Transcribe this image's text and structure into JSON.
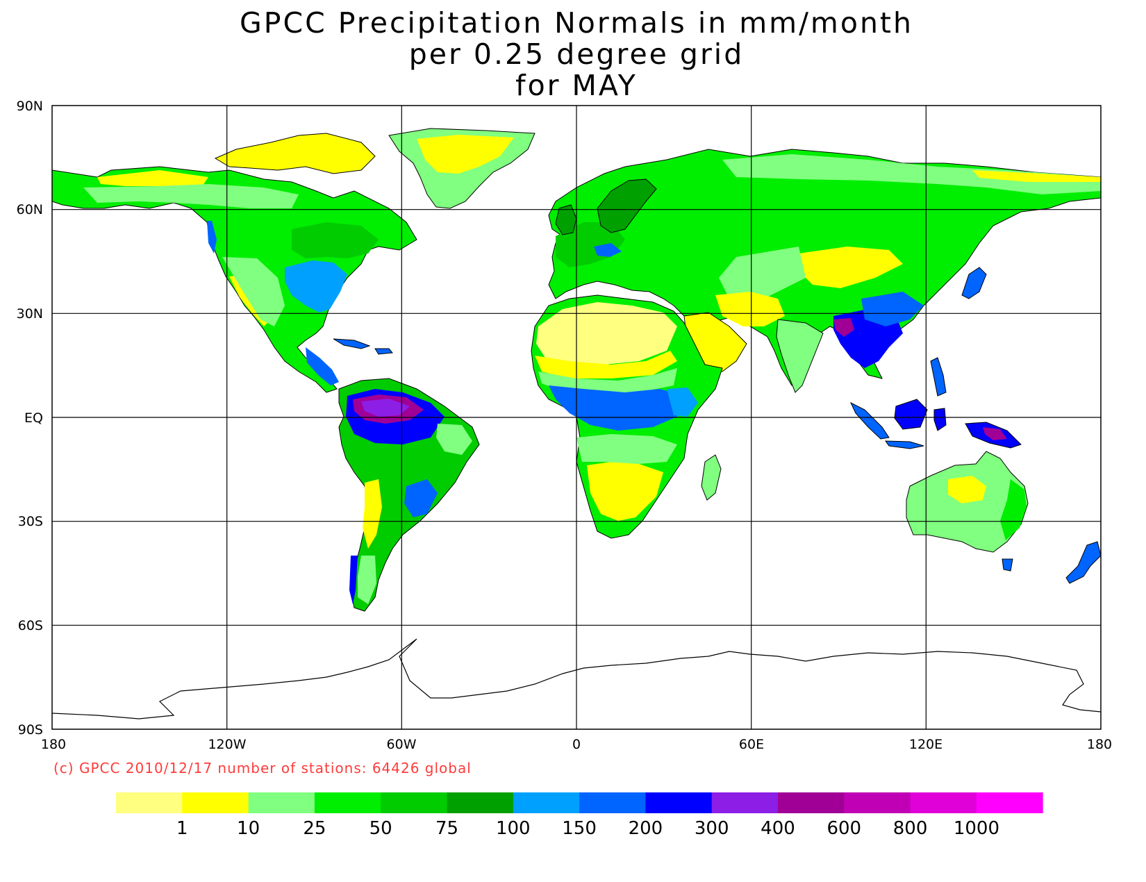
{
  "title": {
    "line1": "GPCC Precipitation Normals in mm/month",
    "line2": "per 0.25 degree grid",
    "line3": "for MAY"
  },
  "credit": "(c) GPCC 2010/12/17 number of stations: 64426 global",
  "axes": {
    "y_ticks": [
      "90N",
      "60N",
      "30N",
      "EQ",
      "30S",
      "60S",
      "90S"
    ],
    "x_ticks": [
      "180",
      "120W",
      "60W",
      "0",
      "60E",
      "120E",
      "180"
    ]
  },
  "legend": {
    "colors": [
      "#ffff80",
      "#ffff00",
      "#80ff80",
      "#00ee00",
      "#00cc00",
      "#00a000",
      "#00a0ff",
      "#0064ff",
      "#0000ff",
      "#8c1ee6",
      "#a00096",
      "#c000b4",
      "#e000d8",
      "#ff00ff"
    ],
    "labels": [
      "1",
      "10",
      "25",
      "50",
      "75",
      "100",
      "150",
      "200",
      "300",
      "400",
      "600",
      "800",
      "1000"
    ]
  },
  "colors": {
    "ocean": "#ffffff",
    "grid": "#000000",
    "credit": "#ff3b3b"
  }
}
